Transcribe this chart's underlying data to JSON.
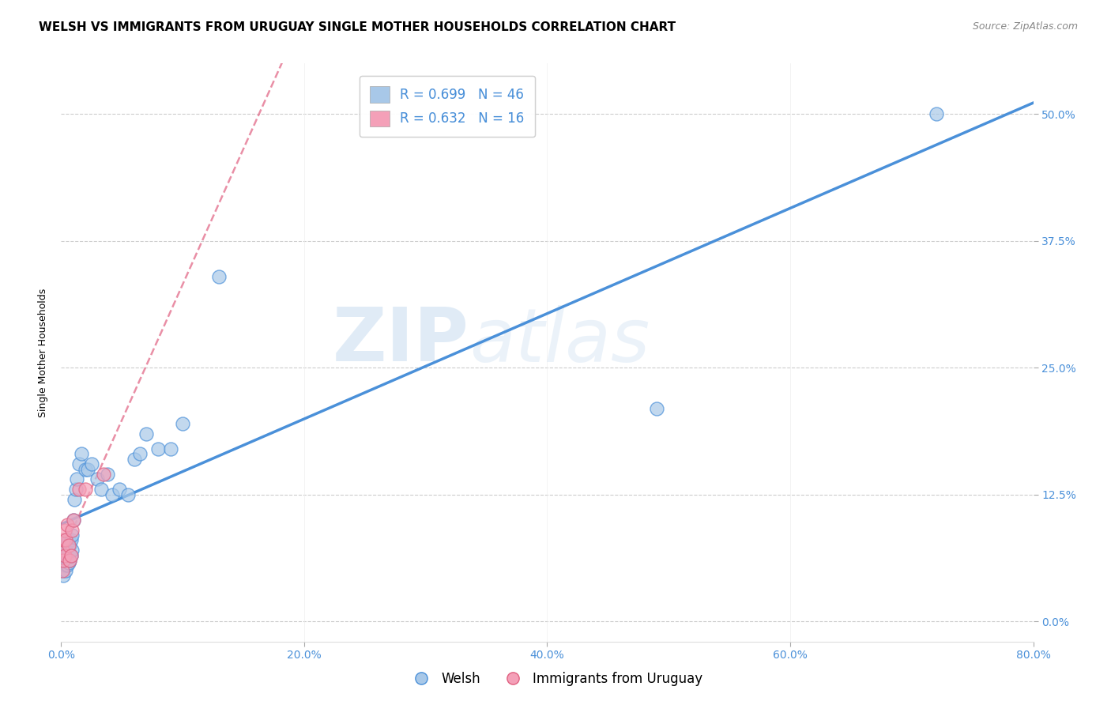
{
  "title": "WELSH VS IMMIGRANTS FROM URUGUAY SINGLE MOTHER HOUSEHOLDS CORRELATION CHART",
  "source": "Source: ZipAtlas.com",
  "ylabel": "Single Mother Households",
  "welsh_r": 0.699,
  "welsh_n": 46,
  "uruguay_r": 0.632,
  "uruguay_n": 16,
  "welsh_color": "#a8c8e8",
  "welsh_line_color": "#4a90d9",
  "uruguay_color": "#f4a0b8",
  "uruguay_line_color": "#e06080",
  "watermark_zip": "ZIP",
  "watermark_atlas": "atlas",
  "xlim": [
    0.0,
    0.8
  ],
  "ylim": [
    -0.02,
    0.55
  ],
  "xticks": [
    0.0,
    0.2,
    0.4,
    0.6,
    0.8
  ],
  "yticks": [
    0.0,
    0.125,
    0.25,
    0.375,
    0.5
  ],
  "welsh_x": [
    0.001,
    0.001,
    0.002,
    0.002,
    0.002,
    0.003,
    0.003,
    0.003,
    0.004,
    0.004,
    0.005,
    0.005,
    0.005,
    0.006,
    0.006,
    0.006,
    0.007,
    0.007,
    0.008,
    0.008,
    0.009,
    0.009,
    0.01,
    0.011,
    0.012,
    0.013,
    0.015,
    0.017,
    0.02,
    0.022,
    0.025,
    0.03,
    0.033,
    0.038,
    0.042,
    0.048,
    0.055,
    0.06,
    0.065,
    0.07,
    0.08,
    0.09,
    0.1,
    0.13,
    0.49,
    0.72
  ],
  "welsh_y": [
    0.05,
    0.06,
    0.045,
    0.06,
    0.07,
    0.055,
    0.065,
    0.075,
    0.05,
    0.07,
    0.055,
    0.065,
    0.08,
    0.058,
    0.068,
    0.08,
    0.06,
    0.075,
    0.065,
    0.08,
    0.07,
    0.085,
    0.1,
    0.12,
    0.13,
    0.14,
    0.155,
    0.165,
    0.15,
    0.15,
    0.155,
    0.14,
    0.13,
    0.145,
    0.125,
    0.13,
    0.125,
    0.16,
    0.165,
    0.185,
    0.17,
    0.17,
    0.195,
    0.34,
    0.21,
    0.5
  ],
  "uruguay_x": [
    0.001,
    0.001,
    0.002,
    0.002,
    0.003,
    0.003,
    0.004,
    0.005,
    0.006,
    0.007,
    0.008,
    0.009,
    0.01,
    0.015,
    0.02,
    0.035
  ],
  "uruguay_y": [
    0.05,
    0.07,
    0.06,
    0.08,
    0.065,
    0.09,
    0.08,
    0.095,
    0.075,
    0.06,
    0.065,
    0.09,
    0.1,
    0.13,
    0.13,
    0.145
  ],
  "title_fontsize": 11,
  "axis_label_fontsize": 9,
  "tick_fontsize": 10,
  "legend_fontsize": 12,
  "source_fontsize": 9
}
